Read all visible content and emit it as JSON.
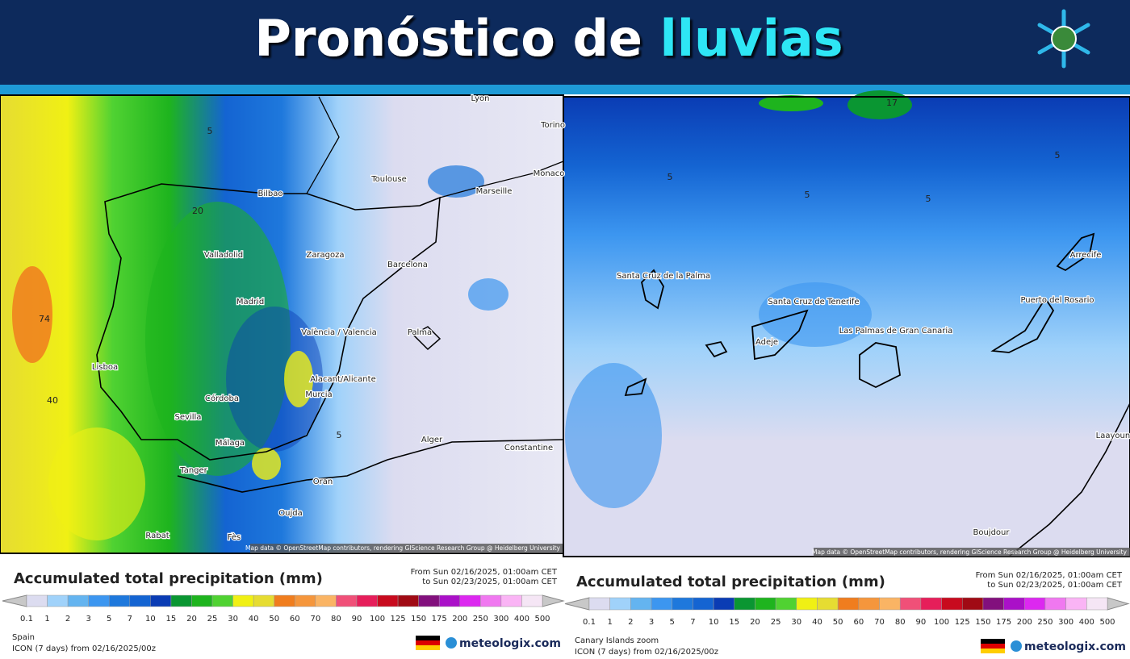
{
  "header": {
    "title": "Pronóstico de",
    "title_highlight": "lluvias"
  },
  "legend": {
    "title": "Accumulated total precipitation (mm)",
    "period_from": "From Sun 02/16/2025, 01:00am CET",
    "period_to": "to Sun 02/23/2025, 01:00am CET",
    "levels": [
      0.1,
      1,
      2,
      3,
      5,
      7,
      10,
      15,
      20,
      25,
      30,
      40,
      50,
      60,
      70,
      80,
      90,
      100,
      125,
      150,
      175,
      200,
      250,
      300,
      400,
      500
    ],
    "colors": [
      "#dcdcf0",
      "#a0d2fa",
      "#64b4f0",
      "#3c96f0",
      "#1e78dc",
      "#1464d2",
      "#0a3cb4",
      "#0a9632",
      "#1eb41e",
      "#50d232",
      "#f0f014",
      "#e6dc32",
      "#f07d1e",
      "#f5963c",
      "#fab464",
      "#f05078",
      "#e61e5a",
      "#c80a1e",
      "#a00a14",
      "#82107d",
      "#aa10c8",
      "#dc28f0",
      "#f078f0",
      "#fab4f5",
      "#f5e6f5"
    ],
    "model": "ICON (7 days) from 02/16/2025/00z",
    "brand": "meteologix.com"
  },
  "panels": [
    {
      "region": "Spain",
      "attribution": "Map data © OpenStreetMap contributors, rendering GIScience Research Group @ Heidelberg University",
      "places": [
        "Lyon",
        "Torino",
        "Monaco",
        "Toulouse",
        "Marseille",
        "Bilbao",
        "Valladolid",
        "Zaragoza",
        "Barcelona",
        "Madrid",
        "València / Valencia",
        "Palma",
        "Lisboa",
        "Alacant/Alicante",
        "Murcia",
        "Córdoba",
        "Sevilla",
        "Málaga",
        "Alger",
        "Constantine",
        "Tanger",
        "Oran",
        "Oujda",
        "Rabat",
        "Fès"
      ],
      "contour_labels": [
        74,
        40,
        20,
        5,
        5
      ]
    },
    {
      "region": "Canary Islands zoom",
      "attribution": "Map data © OpenStreetMap contributors, rendering GIScience Research Group @ Heidelberg University",
      "places": [
        "Santa Cruz de la Palma",
        "Santa Cruz de Tenerife",
        "Adeje",
        "Las Palmas de Gran Canaria",
        "Arrecife",
        "Puerto del Rosario",
        "Boujdour",
        "Laayoune"
      ],
      "contour_labels": [
        17,
        5,
        5,
        5,
        5
      ]
    }
  ]
}
